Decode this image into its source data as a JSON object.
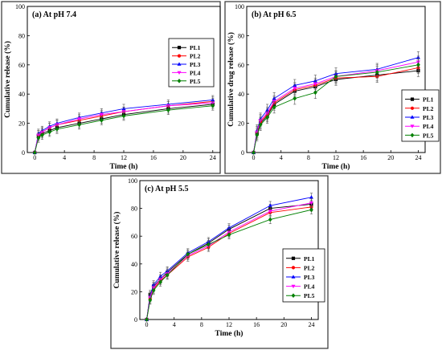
{
  "chart_data": [
    {
      "type": "line",
      "title": "(a) At pH 7.4",
      "xlabel": "Time (h)",
      "ylabel": "Cumulative release (%)",
      "xlim": [
        -1,
        25
      ],
      "ylim": [
        0,
        100
      ],
      "xticks": [
        0,
        4,
        8,
        12,
        16,
        20,
        24
      ],
      "yticks": [
        0,
        20,
        40,
        60,
        80,
        100
      ],
      "legend_position": "right-middle",
      "x": [
        0,
        0.5,
        1,
        2,
        3,
        6,
        9,
        12,
        18,
        24
      ],
      "series": [
        {
          "name": "PL1",
          "color": "#000000",
          "marker": "square",
          "values": [
            0,
            11,
            13,
            15,
            17,
            20,
            23,
            26,
            30,
            33
          ]
        },
        {
          "name": "PL2",
          "color": "#ff0000",
          "marker": "circle",
          "values": [
            0,
            12,
            14,
            17,
            19,
            22,
            25,
            28,
            32,
            35
          ]
        },
        {
          "name": "PL3",
          "color": "#0000ff",
          "marker": "triangle",
          "values": [
            0,
            13,
            15,
            18,
            20,
            24,
            27,
            30,
            33,
            36
          ]
        },
        {
          "name": "PL4",
          "color": "#ff00ff",
          "marker": "triangle-down",
          "values": [
            0,
            12,
            14,
            17,
            19,
            23,
            26,
            28,
            32,
            34
          ]
        },
        {
          "name": "PL5",
          "color": "#008000",
          "marker": "diamond",
          "values": [
            0,
            10,
            12,
            14,
            16,
            19,
            22,
            25,
            29,
            32
          ]
        }
      ],
      "error": 3
    },
    {
      "type": "line",
      "title": "(b) At pH 6.5",
      "xlabel": "Time (h)",
      "ylabel": "Cumulative drug release (%)",
      "xlim": [
        -1,
        25
      ],
      "ylim": [
        0,
        100
      ],
      "xticks": [
        0,
        4,
        8,
        12,
        16,
        20,
        24
      ],
      "yticks": [
        0,
        20,
        40,
        60,
        80,
        100
      ],
      "legend_position": "right-middle",
      "x": [
        0,
        0.5,
        1,
        2,
        3,
        6,
        9,
        12,
        18,
        24
      ],
      "series": [
        {
          "name": "PL1",
          "color": "#000000",
          "marker": "square",
          "values": [
            0,
            13,
            20,
            25,
            33,
            42,
            45,
            50,
            53,
            56
          ]
        },
        {
          "name": "PL2",
          "color": "#ff0000",
          "marker": "circle",
          "values": [
            0,
            14,
            21,
            26,
            34,
            43,
            46,
            51,
            52,
            58
          ]
        },
        {
          "name": "PL3",
          "color": "#0000ff",
          "marker": "triangle",
          "values": [
            0,
            15,
            23,
            29,
            37,
            46,
            49,
            54,
            57,
            65
          ]
        },
        {
          "name": "PL4",
          "color": "#ff00ff",
          "marker": "triangle-down",
          "values": [
            0,
            14,
            22,
            27,
            35,
            44,
            47,
            52,
            56,
            62
          ]
        },
        {
          "name": "PL5",
          "color": "#008000",
          "marker": "diamond",
          "values": [
            0,
            12,
            19,
            24,
            31,
            37,
            41,
            52,
            55,
            60
          ]
        }
      ],
      "error": 4
    },
    {
      "type": "line",
      "title": "(c) At pH 5.5",
      "xlabel": "Time (h)",
      "ylabel": "Cumulative release (%)",
      "xlim": [
        -1,
        25
      ],
      "ylim": [
        0,
        100
      ],
      "xticks": [
        0,
        4,
        8,
        12,
        16,
        20,
        24
      ],
      "yticks": [
        0,
        20,
        40,
        60,
        80,
        100
      ],
      "legend_position": "right-bottom",
      "x": [
        0,
        0.5,
        1,
        2,
        3,
        6,
        9,
        12,
        18,
        24
      ],
      "series": [
        {
          "name": "PL1",
          "color": "#000000",
          "marker": "square",
          "values": [
            0,
            18,
            24,
            29,
            34,
            47,
            55,
            65,
            80,
            83
          ]
        },
        {
          "name": "PL2",
          "color": "#ff0000",
          "marker": "circle",
          "values": [
            0,
            15,
            22,
            28,
            32,
            45,
            52,
            62,
            77,
            81
          ]
        },
        {
          "name": "PL3",
          "color": "#0000ff",
          "marker": "triangle",
          "values": [
            0,
            17,
            25,
            31,
            35,
            48,
            56,
            66,
            82,
            88
          ]
        },
        {
          "name": "PL4",
          "color": "#ff00ff",
          "marker": "triangle-down",
          "values": [
            0,
            16,
            23,
            29,
            33,
            46,
            53,
            63,
            78,
            84
          ]
        },
        {
          "name": "PL5",
          "color": "#008000",
          "marker": "diamond",
          "values": [
            0,
            14,
            21,
            27,
            32,
            47,
            54,
            61,
            72,
            79
          ]
        }
      ],
      "error": 3
    }
  ]
}
